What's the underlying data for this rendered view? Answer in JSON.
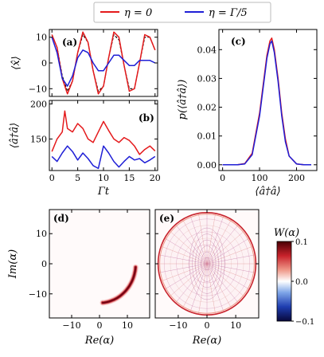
{
  "legend": {
    "entries": [
      {
        "label": "η = 0",
        "color": "#e41a1c"
      },
      {
        "label": "η = Γ/5",
        "color": "#1f1fd6"
      }
    ]
  },
  "colors": {
    "red": "#e41a1c",
    "blue": "#1f1fd6",
    "black": "#000000"
  },
  "chart_data": [
    {
      "panel_label": "(a)",
      "type": "line",
      "xlabel": "",
      "ylabel": "⟨x̂⟩",
      "xlim": [
        -0.5,
        20.5
      ],
      "ylim": [
        -13,
        13
      ],
      "yticks": [
        -10,
        0,
        10
      ],
      "xticks": [
        0,
        5,
        10,
        15,
        20
      ],
      "series": [
        {
          "color": "black",
          "dashed": true,
          "x": [
            0,
            1,
            2,
            3,
            4,
            5,
            6,
            7,
            8,
            9,
            10,
            11,
            12,
            13,
            14,
            15,
            16,
            17,
            18,
            19,
            20
          ],
          "y": [
            11,
            6,
            -5,
            -11,
            -7,
            4,
            11,
            8,
            -3,
            -11,
            -9,
            2,
            11,
            9,
            -1,
            -10,
            -10,
            0,
            10,
            10,
            5
          ]
        },
        {
          "color": "red",
          "x": [
            0,
            1,
            2,
            3,
            4,
            5,
            6,
            7,
            8,
            9,
            10,
            11,
            12,
            13,
            14,
            15,
            16,
            17,
            18,
            19,
            20
          ],
          "y": [
            11,
            6,
            -6,
            -12,
            -7,
            4,
            12,
            8,
            -3,
            -12,
            -9,
            2,
            12,
            10,
            -1,
            -11,
            -10,
            0,
            11,
            10,
            5
          ]
        },
        {
          "color": "blue",
          "x": [
            0,
            1,
            2,
            3,
            4,
            5,
            6,
            7,
            8,
            9,
            10,
            11,
            12,
            13,
            14,
            15,
            16,
            17,
            18,
            19,
            20
          ],
          "y": [
            10,
            4,
            -6,
            -9,
            -5,
            2,
            5,
            4,
            0,
            -3,
            -3,
            0,
            3,
            3,
            1,
            -1,
            -1,
            1,
            1,
            1,
            0
          ]
        }
      ]
    },
    {
      "panel_label": "(b)",
      "type": "line",
      "xlabel": "Γt",
      "ylabel": "⟨â†â⟩",
      "xlim": [
        -0.5,
        20.5
      ],
      "ylim": [
        105,
        205
      ],
      "yticks": [
        100,
        150,
        200
      ],
      "xticks": [
        0,
        5,
        10,
        15,
        20
      ],
      "series": [
        {
          "color": "red",
          "x": [
            0,
            1,
            2,
            2.5,
            3,
            4,
            5,
            6,
            7,
            8,
            9,
            10,
            11,
            12,
            13,
            14,
            15,
            16,
            17,
            18,
            19,
            20
          ],
          "y": [
            132,
            150,
            160,
            190,
            165,
            160,
            172,
            165,
            150,
            145,
            160,
            175,
            162,
            150,
            145,
            152,
            148,
            140,
            128,
            135,
            140,
            133
          ]
        },
        {
          "color": "blue",
          "x": [
            0,
            1,
            2,
            3,
            4,
            5,
            6,
            7,
            8,
            9,
            10,
            11,
            12,
            13,
            14,
            15,
            16,
            17,
            18,
            19,
            20
          ],
          "y": [
            125,
            118,
            130,
            140,
            132,
            120,
            130,
            122,
            112,
            108,
            140,
            130,
            118,
            110,
            118,
            125,
            120,
            122,
            116,
            120,
            125
          ]
        }
      ]
    },
    {
      "panel_label": "(c)",
      "type": "line",
      "xlabel": "⟨â†â⟩",
      "ylabel": "p(⟨â†â⟩)",
      "xlim": [
        -10,
        255
      ],
      "ylim": [
        -0.002,
        0.047
      ],
      "xticks": [
        0,
        100,
        200
      ],
      "yticks": [
        0.0,
        0.01,
        0.02,
        0.03,
        0.04
      ],
      "series": [
        {
          "color": "red",
          "x": [
            0,
            40,
            60,
            80,
            100,
            110,
            120,
            128,
            133,
            140,
            150,
            160,
            170,
            180,
            200,
            220,
            240
          ],
          "y": [
            0,
            0,
            0.0004,
            0.004,
            0.018,
            0.028,
            0.038,
            0.043,
            0.044,
            0.04,
            0.03,
            0.018,
            0.009,
            0.003,
            0.0003,
            0,
            0
          ]
        },
        {
          "color": "blue",
          "x": [
            0,
            40,
            60,
            80,
            100,
            110,
            120,
            128,
            133,
            140,
            150,
            160,
            170,
            180,
            200,
            220,
            240
          ],
          "y": [
            0,
            0,
            0.0003,
            0.0035,
            0.017,
            0.027,
            0.037,
            0.042,
            0.043,
            0.039,
            0.029,
            0.017,
            0.008,
            0.003,
            0.0003,
            0,
            0
          ]
        }
      ]
    },
    {
      "panel_label": "(d)",
      "type": "heatmap",
      "xlabel": "Re(α)",
      "ylabel": "Im(α)",
      "xlim": [
        -18,
        18
      ],
      "ylim": [
        -18,
        18
      ],
      "xticks": [
        -10,
        0,
        10
      ],
      "yticks": [
        -10,
        0,
        10
      ],
      "feature": "crescent",
      "arc_radius": 13,
      "arc_angle_deg": [
        -85,
        -5
      ]
    },
    {
      "panel_label": "(e)",
      "type": "heatmap",
      "xlabel": "Re(α)",
      "ylabel": "",
      "xlim": [
        -18,
        18
      ],
      "ylim": [
        -18,
        18
      ],
      "xticks": [
        -10,
        0,
        10
      ],
      "feature": "ring_interference",
      "ring_radius": 17
    }
  ],
  "colorbar": {
    "label": "W(α)",
    "min": -0.1,
    "max": 0.1,
    "ticks": [
      0.1,
      0.0,
      -0.1
    ],
    "tick_labels": [
      "0.1",
      "0.0",
      "−0.1"
    ],
    "colormap": [
      "#08083a",
      "#1e3db0",
      "#7fa6e8",
      "#ffffff",
      "#ef9a8a",
      "#c8222b",
      "#4a0005"
    ]
  }
}
